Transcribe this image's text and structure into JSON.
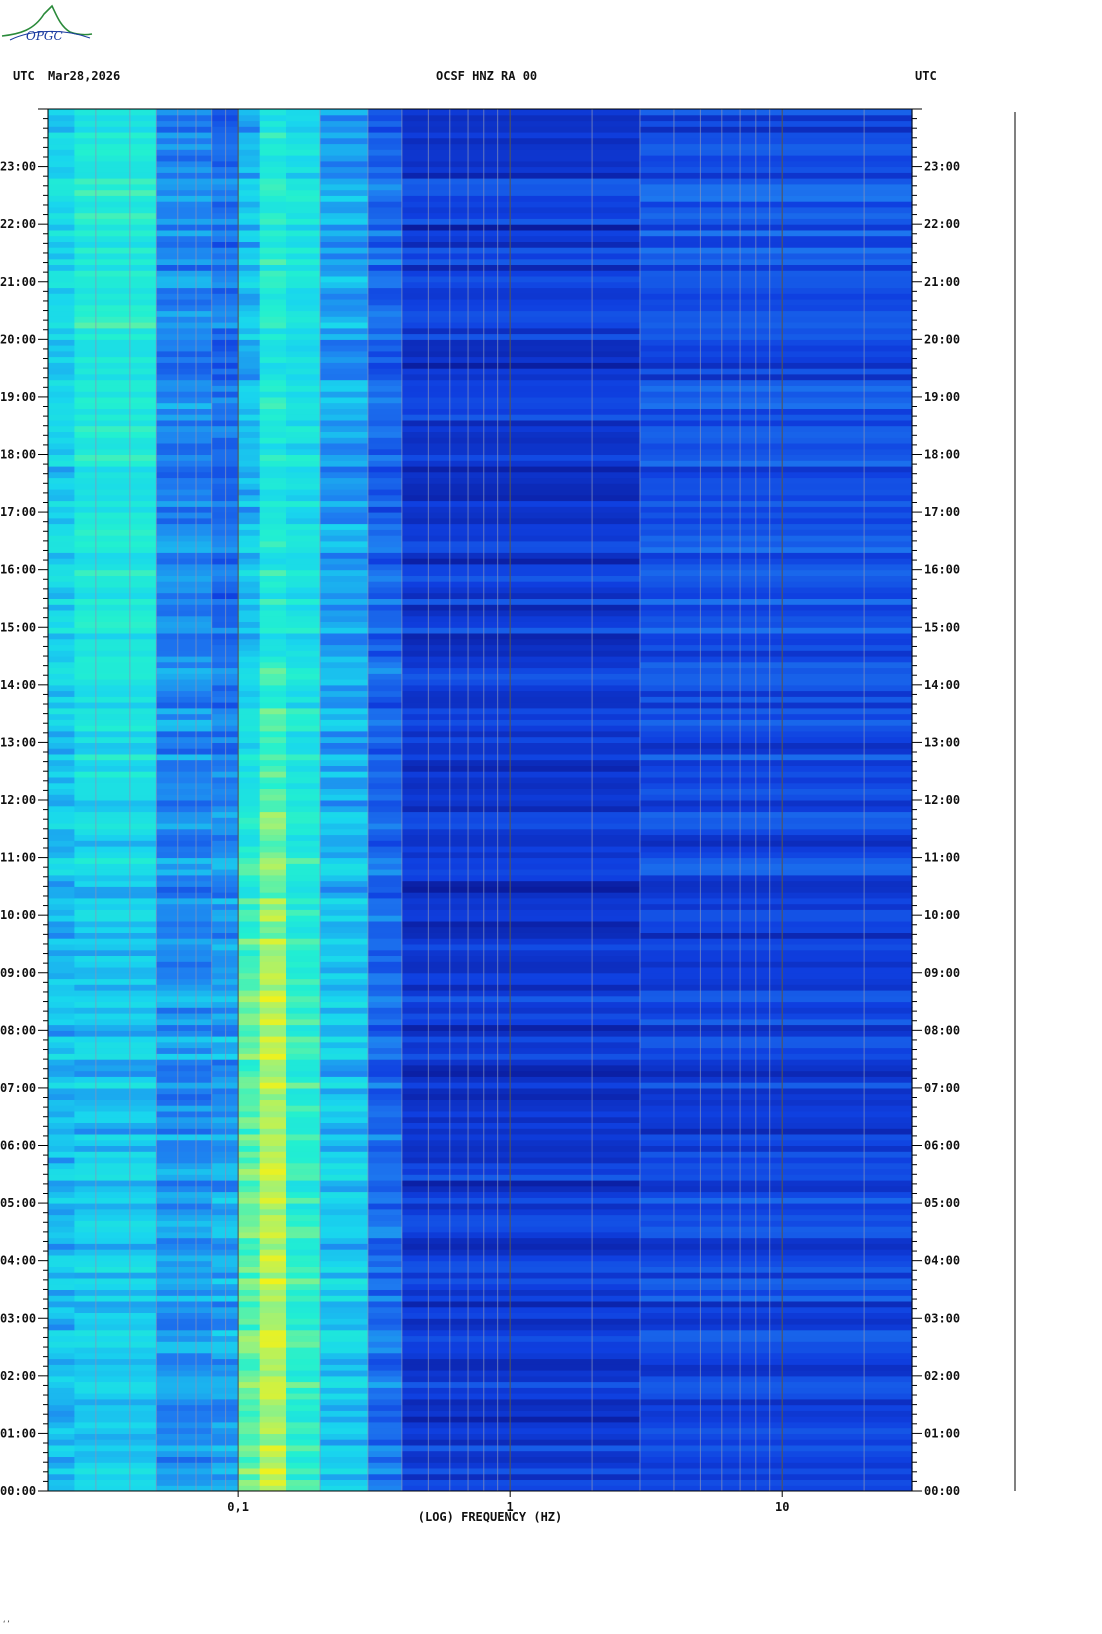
{
  "header": {
    "left_tz": "UTC",
    "date": "Mar28,2026",
    "station": "OCSF HNZ RA 00",
    "right_tz": "UTC"
  },
  "logo": {
    "text": "OPGC",
    "color": "#2a8a3a"
  },
  "corner_mark": "‘’",
  "chart_data": {
    "type": "heatmap",
    "title": "OCSF HNZ RA 00",
    "xlabel": "(LOG) FREQUENCY (HZ)",
    "ylabel": "",
    "x_scale": "log",
    "xlim": [
      0.02,
      30
    ],
    "x_ticks": [
      {
        "value": 0.1,
        "label": "0,1"
      },
      {
        "value": 1,
        "label": "1"
      },
      {
        "value": 10,
        "label": "10"
      }
    ],
    "ylim": [
      0,
      24
    ],
    "y_ticks": [
      {
        "value": 0,
        "label": "00:00"
      },
      {
        "value": 1,
        "label": "01:00"
      },
      {
        "value": 2,
        "label": "02:00"
      },
      {
        "value": 3,
        "label": "03:00"
      },
      {
        "value": 4,
        "label": "04:00"
      },
      {
        "value": 5,
        "label": "05:00"
      },
      {
        "value": 6,
        "label": "06:00"
      },
      {
        "value": 7,
        "label": "07:00"
      },
      {
        "value": 8,
        "label": "08:00"
      },
      {
        "value": 9,
        "label": "09:00"
      },
      {
        "value": 10,
        "label": "10:00"
      },
      {
        "value": 11,
        "label": "11:00"
      },
      {
        "value": 12,
        "label": "12:00"
      },
      {
        "value": 13,
        "label": "13:00"
      },
      {
        "value": 14,
        "label": "14:00"
      },
      {
        "value": 15,
        "label": "15:00"
      },
      {
        "value": 16,
        "label": "16:00"
      },
      {
        "value": 17,
        "label": "17:00"
      },
      {
        "value": 18,
        "label": "18:00"
      },
      {
        "value": 19,
        "label": "19:00"
      },
      {
        "value": 20,
        "label": "20:00"
      },
      {
        "value": 21,
        "label": "21:00"
      },
      {
        "value": 22,
        "label": "22:00"
      },
      {
        "value": 23,
        "label": "23:00"
      }
    ],
    "grid": true,
    "colorscale": [
      "#0a1a9a",
      "#0f3fe0",
      "#1e7af0",
      "#19d6ee",
      "#22f0d0",
      "#9cf27a",
      "#f2f21a",
      "#f2a018",
      "#e23016"
    ],
    "frequency_bands": [
      {
        "f_lo": 0.02,
        "f_hi": 0.025,
        "level_night": 0.34,
        "level_day": 0.38
      },
      {
        "f_lo": 0.025,
        "f_hi": 0.05,
        "level_night": 0.36,
        "level_day": 0.46
      },
      {
        "f_lo": 0.05,
        "f_hi": 0.08,
        "level_night": 0.28,
        "level_day": 0.26
      },
      {
        "f_lo": 0.08,
        "f_hi": 0.1,
        "level_night": 0.3,
        "level_day": 0.22
      },
      {
        "f_lo": 0.1,
        "f_hi": 0.12,
        "level_night": 0.56,
        "level_day": 0.34
      },
      {
        "f_lo": 0.12,
        "f_hi": 0.15,
        "level_night": 0.66,
        "level_day": 0.46
      },
      {
        "f_lo": 0.15,
        "f_hi": 0.2,
        "level_night": 0.5,
        "level_day": 0.42
      },
      {
        "f_lo": 0.2,
        "f_hi": 0.3,
        "level_night": 0.36,
        "level_day": 0.3
      },
      {
        "f_lo": 0.3,
        "f_hi": 0.4,
        "level_night": 0.22,
        "level_day": 0.2
      },
      {
        "f_lo": 0.4,
        "f_hi": 3,
        "level_night": 0.1,
        "level_day": 0.1
      },
      {
        "f_lo": 3,
        "f_hi": 30,
        "level_night": 0.13,
        "level_day": 0.16
      }
    ]
  }
}
